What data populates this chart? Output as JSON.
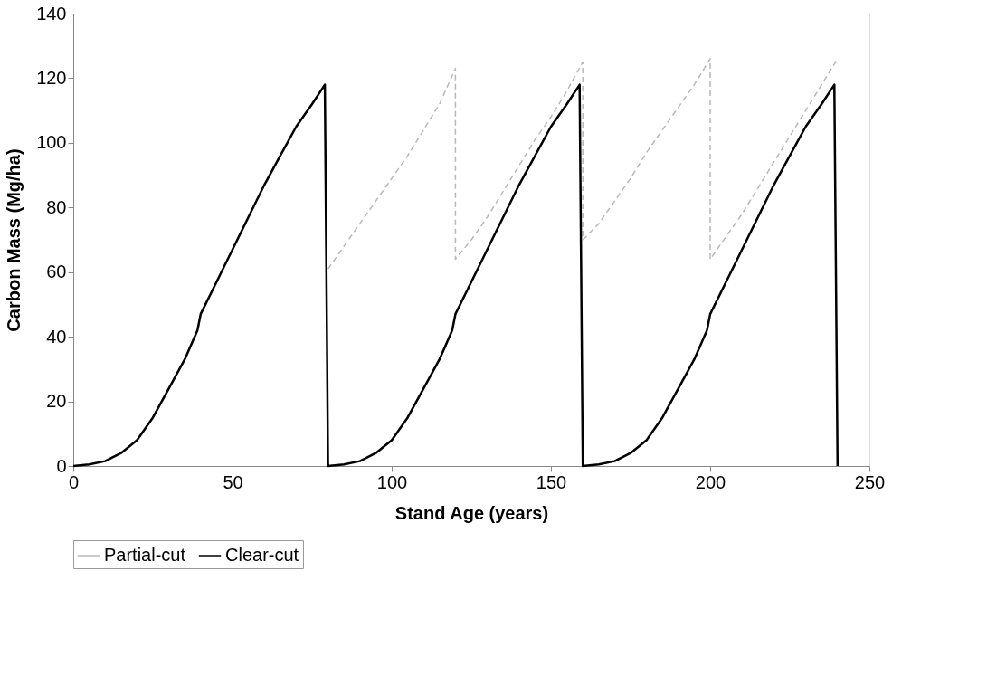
{
  "chart_data": {
    "type": "line",
    "xlabel": "Stand Age (years)",
    "ylabel": "Carbon Mass (Mg/ha)",
    "xlim": [
      0,
      250
    ],
    "xticks": [
      0,
      50,
      100,
      150,
      200,
      250
    ],
    "ylim": [
      0,
      140
    ],
    "yticks": [
      0,
      20,
      40,
      60,
      80,
      100,
      120,
      140
    ],
    "grid": false,
    "legend": "bottom",
    "marker": "none",
    "series": [
      {
        "name": "Partial-cut",
        "color": "#b8b8b8",
        "line_style": "dashed",
        "x": [
          80,
          85,
          90,
          95,
          100,
          105,
          110,
          115,
          120,
          120,
          125,
          130,
          135,
          140,
          145,
          150,
          155,
          160,
          160,
          165,
          170,
          175,
          180,
          185,
          190,
          195,
          200,
          200,
          205,
          210,
          215,
          220,
          225,
          230,
          235,
          240
        ],
        "values": [
          61,
          68,
          75,
          82,
          89,
          96,
          104,
          112,
          123,
          64,
          70,
          77,
          85,
          93,
          101,
          108,
          116,
          125,
          70,
          75,
          82,
          89,
          97,
          104,
          111,
          118,
          126,
          64,
          71,
          78,
          86,
          94,
          102,
          110,
          118,
          126
        ]
      },
      {
        "name": "Clear-cut",
        "color": "#000000",
        "line_style": "solid",
        "x": [
          0,
          5,
          10,
          15,
          20,
          25,
          30,
          35,
          39,
          40,
          45,
          50,
          55,
          60,
          65,
          70,
          75,
          79,
          80,
          85,
          90,
          95,
          100,
          105,
          110,
          115,
          119,
          120,
          125,
          130,
          135,
          140,
          145,
          150,
          155,
          159,
          160,
          165,
          170,
          175,
          180,
          185,
          190,
          195,
          199,
          200,
          205,
          210,
          215,
          220,
          225,
          230,
          235,
          239,
          240
        ],
        "values": [
          0,
          0.5,
          1.5,
          4,
          8,
          15,
          24,
          33,
          42,
          47,
          57,
          67,
          77,
          87,
          96,
          105,
          112,
          118,
          0,
          0.5,
          1.5,
          4,
          8,
          15,
          24,
          33,
          42,
          47,
          57,
          67,
          77,
          87,
          96,
          105,
          112,
          118,
          0,
          0.5,
          1.5,
          4,
          8,
          15,
          24,
          33,
          42,
          47,
          57,
          67,
          77,
          87,
          96,
          105,
          112,
          118,
          0
        ]
      }
    ]
  }
}
